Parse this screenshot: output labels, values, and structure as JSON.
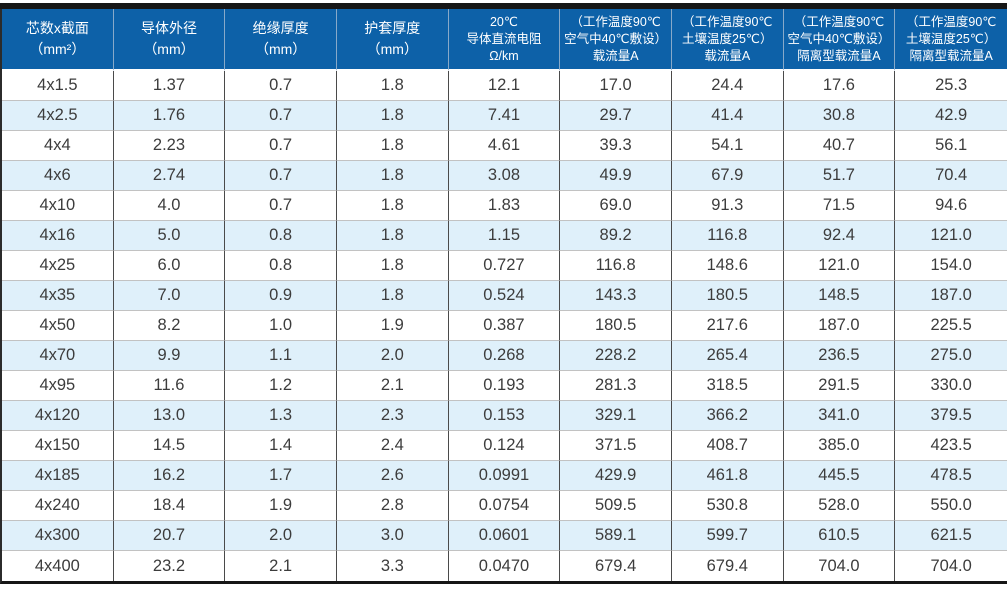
{
  "colors": {
    "header_bg": "#0d61a8",
    "header_text": "#ffffff",
    "row_alt_bg": "#dff0fa",
    "row_bg": "#ffffff",
    "top_bottom_bar": "#161616",
    "grid_vertical": "#4a4a4a",
    "grid_horizontal": "#c2c2c2",
    "cell_text": "#3c3c3c"
  },
  "table": {
    "headers": [
      {
        "id": "cores-cross-section",
        "lines": [
          "芯数x截面",
          "（mm²）"
        ]
      },
      {
        "id": "conductor-outer-diameter",
        "lines": [
          "导体外径",
          "（mm）"
        ]
      },
      {
        "id": "insulation-thickness",
        "lines": [
          "绝缘厚度",
          "（mm）"
        ]
      },
      {
        "id": "sheath-thickness",
        "lines": [
          "护套厚度",
          "（mm）"
        ]
      },
      {
        "id": "dc-resistance-20c",
        "lines": [
          "20℃",
          "导体直流电阻",
          "Ω/km"
        ]
      },
      {
        "id": "ampacity-air-40c",
        "lines": [
          "（工作温度90℃",
          "空气中40℃敷设）",
          "载流量A"
        ]
      },
      {
        "id": "ampacity-soil-25c",
        "lines": [
          "（工作温度90℃",
          "土壤温度25℃）",
          "载流量A"
        ]
      },
      {
        "id": "isolated-ampacity-air-40c",
        "lines": [
          "（工作温度90℃",
          "空气中40℃敷设）",
          "隔离型载流量A"
        ]
      },
      {
        "id": "isolated-ampacity-soil-25c",
        "lines": [
          "（工作温度90℃",
          "土壤温度25℃）",
          "隔离型载流量A"
        ]
      }
    ],
    "rows": [
      [
        "4x1.5",
        "1.37",
        "0.7",
        "1.8",
        "12.1",
        "17.0",
        "24.4",
        "17.6",
        "25.3"
      ],
      [
        "4x2.5",
        "1.76",
        "0.7",
        "1.8",
        "7.41",
        "29.7",
        "41.4",
        "30.8",
        "42.9"
      ],
      [
        "4x4",
        "2.23",
        "0.7",
        "1.8",
        "4.61",
        "39.3",
        "54.1",
        "40.7",
        "56.1"
      ],
      [
        "4x6",
        "2.74",
        "0.7",
        "1.8",
        "3.08",
        "49.9",
        "67.9",
        "51.7",
        "70.4"
      ],
      [
        "4x10",
        "4.0",
        "0.7",
        "1.8",
        "1.83",
        "69.0",
        "91.3",
        "71.5",
        "94.6"
      ],
      [
        "4x16",
        "5.0",
        "0.8",
        "1.8",
        "1.15",
        "89.2",
        "116.8",
        "92.4",
        "121.0"
      ],
      [
        "4x25",
        "6.0",
        "0.8",
        "1.8",
        "0.727",
        "116.8",
        "148.6",
        "121.0",
        "154.0"
      ],
      [
        "4x35",
        "7.0",
        "0.9",
        "1.8",
        "0.524",
        "143.3",
        "180.5",
        "148.5",
        "187.0"
      ],
      [
        "4x50",
        "8.2",
        "1.0",
        "1.9",
        "0.387",
        "180.5",
        "217.6",
        "187.0",
        "225.5"
      ],
      [
        "4x70",
        "9.9",
        "1.1",
        "2.0",
        "0.268",
        "228.2",
        "265.4",
        "236.5",
        "275.0"
      ],
      [
        "4x95",
        "11.6",
        "1.2",
        "2.1",
        "0.193",
        "281.3",
        "318.5",
        "291.5",
        "330.0"
      ],
      [
        "4x120",
        "13.0",
        "1.3",
        "2.3",
        "0.153",
        "329.1",
        "366.2",
        "341.0",
        "379.5"
      ],
      [
        "4x150",
        "14.5",
        "1.4",
        "2.4",
        "0.124",
        "371.5",
        "408.7",
        "385.0",
        "423.5"
      ],
      [
        "4x185",
        "16.2",
        "1.7",
        "2.6",
        "0.0991",
        "429.9",
        "461.8",
        "445.5",
        "478.5"
      ],
      [
        "4x240",
        "18.4",
        "1.9",
        "2.8",
        "0.0754",
        "509.5",
        "530.8",
        "528.0",
        "550.0"
      ],
      [
        "4x300",
        "20.7",
        "2.0",
        "3.0",
        "0.0601",
        "589.1",
        "599.7",
        "610.5",
        "621.5"
      ],
      [
        "4x400",
        "23.2",
        "2.1",
        "3.3",
        "0.0470",
        "679.4",
        "679.4",
        "704.0",
        "704.0"
      ]
    ]
  }
}
